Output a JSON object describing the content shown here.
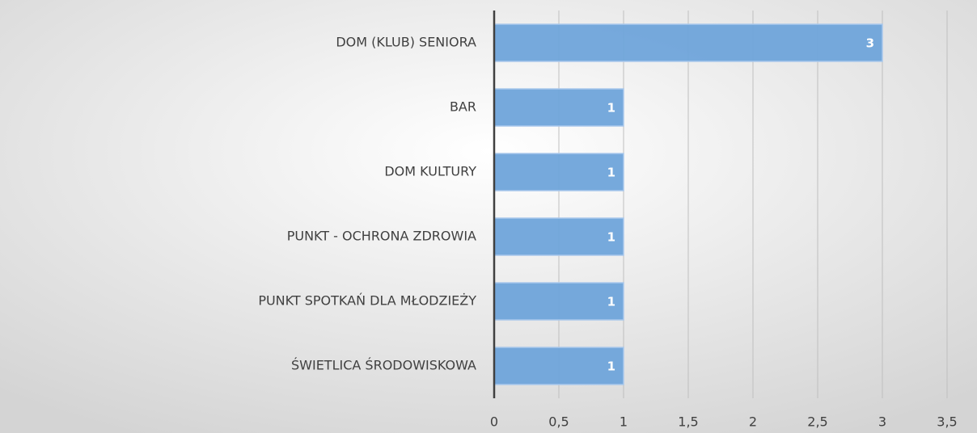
{
  "chart_data": {
    "type": "barh",
    "categories": [
      "DOM (KLUB) SENIORA",
      "BAR",
      "DOM KULTURY",
      "PUNKT - OCHRONA ZDROWIA",
      "PUNKT SPOTKAŃ DLA MŁODZIEŻY",
      "ŚWIETLICA ŚRODOWISKOWA"
    ],
    "values": [
      3,
      1,
      1,
      1,
      1,
      1
    ],
    "color": "#6fa4da",
    "xlim": [
      0,
      3.5
    ],
    "xticks": [
      0,
      {
        "value": 0.5,
        "label": "0,5"
      },
      1,
      {
        "value": 1.5,
        "label": "1,5"
      },
      2,
      {
        "value": 2.5,
        "label": "2,5"
      },
      3,
      {
        "value": 3.5,
        "label": "3,5"
      }
    ],
    "grid": true
  }
}
